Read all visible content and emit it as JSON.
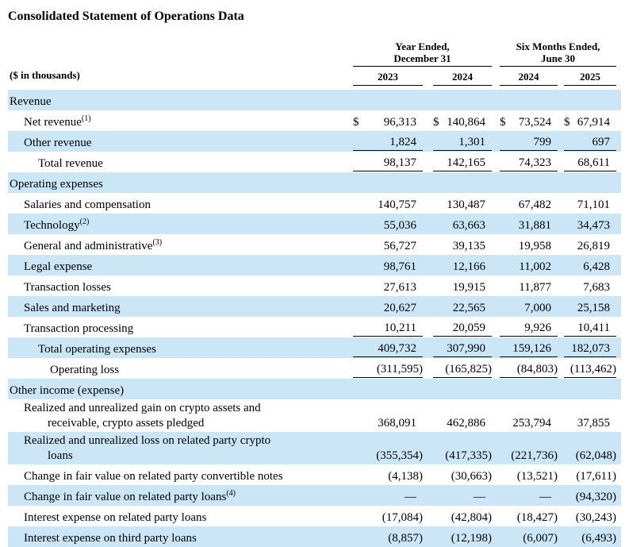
{
  "title": "Consolidated Statement of Operations Data",
  "table": {
    "units_label": "($ in thousands)",
    "currency_symbol": "$",
    "col_groups": [
      {
        "line1": "Year Ended,",
        "line2": "December 31"
      },
      {
        "line1": "Six Months Ended,",
        "line2": "June 30"
      }
    ],
    "years": [
      "2023",
      "2024",
      "2024",
      "2025"
    ],
    "rows": [
      {
        "label": "Revenue"
      },
      {
        "label": "Net revenue",
        "sup": "(1)",
        "values": [
          "96,313",
          "140,864",
          "73,524",
          "67,914"
        ]
      },
      {
        "label": "Other revenue",
        "values": [
          "1,824",
          "1,301",
          "799",
          "697"
        ]
      },
      {
        "label": "Total revenue",
        "values": [
          "98,137",
          "142,165",
          "74,323",
          "68,611"
        ]
      },
      {
        "label": "Operating expenses"
      },
      {
        "label": "Salaries and compensation",
        "values": [
          "140,757",
          "130,487",
          "67,482",
          "71,101"
        ]
      },
      {
        "label": "Technology",
        "sup": "(2)",
        "values": [
          "55,036",
          "63,663",
          "31,881",
          "34,473"
        ]
      },
      {
        "label": "General and administrative",
        "sup": "(3)",
        "values": [
          "56,727",
          "39,135",
          "19,958",
          "26,819"
        ]
      },
      {
        "label": "Legal expense",
        "values": [
          "98,761",
          "12,166",
          "11,002",
          "6,428"
        ]
      },
      {
        "label": "Transaction losses",
        "values": [
          "27,613",
          "19,915",
          "11,877",
          "7,683"
        ]
      },
      {
        "label": "Sales and marketing",
        "values": [
          "20,627",
          "22,565",
          "7,000",
          "25,158"
        ]
      },
      {
        "label": "Transaction processing",
        "values": [
          "10,211",
          "20,059",
          "9,926",
          "10,411"
        ]
      },
      {
        "label": "Total operating expenses",
        "values": [
          "409,732",
          "307,990",
          "159,126",
          "182,073"
        ]
      },
      {
        "label": "Operating loss",
        "values": [
          "(311,595)",
          "(165,825)",
          "(84,803)",
          "(113,462)"
        ]
      },
      {
        "label": "Other income (expense)"
      },
      {
        "label": "Realized and unrealized gain on crypto assets and",
        "label2": "receivable, crypto assets pledged",
        "values": [
          "368,091",
          "462,886",
          "253,794",
          "37,855"
        ]
      },
      {
        "label": "Realized and unrealized loss on related party crypto",
        "label2": "loans",
        "values": [
          "(355,354)",
          "(417,335)",
          "(221,736)",
          "(62,048)"
        ]
      },
      {
        "label": "Change in fair value on related party convertible notes",
        "values": [
          "(4,138)",
          "(30,663)",
          "(13,521)",
          "(17,611)"
        ]
      },
      {
        "label": "Change in fair value on related party loans",
        "sup": "(4)",
        "values": [
          "—",
          "—",
          "—",
          "(94,320)"
        ]
      },
      {
        "label": "Interest expense on related party loans",
        "values": [
          "(17,084)",
          "(42,804)",
          "(18,427)",
          "(30,243)"
        ]
      },
      {
        "label": "Interest expense on third party loans",
        "values": [
          "(8,857)",
          "(12,198)",
          "(6,007)",
          "(6,493)"
        ]
      }
    ]
  }
}
